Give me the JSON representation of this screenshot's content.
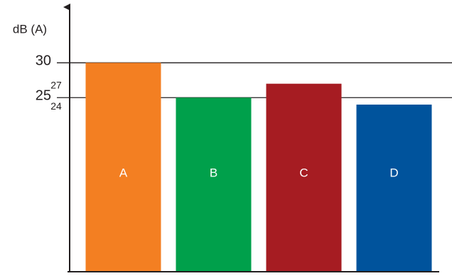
{
  "chart_data": {
    "type": "bar",
    "y_label": "dB (A)",
    "categories": [
      "A",
      "B",
      "C",
      "D"
    ],
    "values": [
      30,
      25,
      27,
      24
    ],
    "colors": [
      "#f37f22",
      "#00a04b",
      "#a61c22",
      "#00539c"
    ],
    "ylim": [
      0,
      38
    ],
    "yticks": [
      25,
      30
    ],
    "grid": true
  }
}
